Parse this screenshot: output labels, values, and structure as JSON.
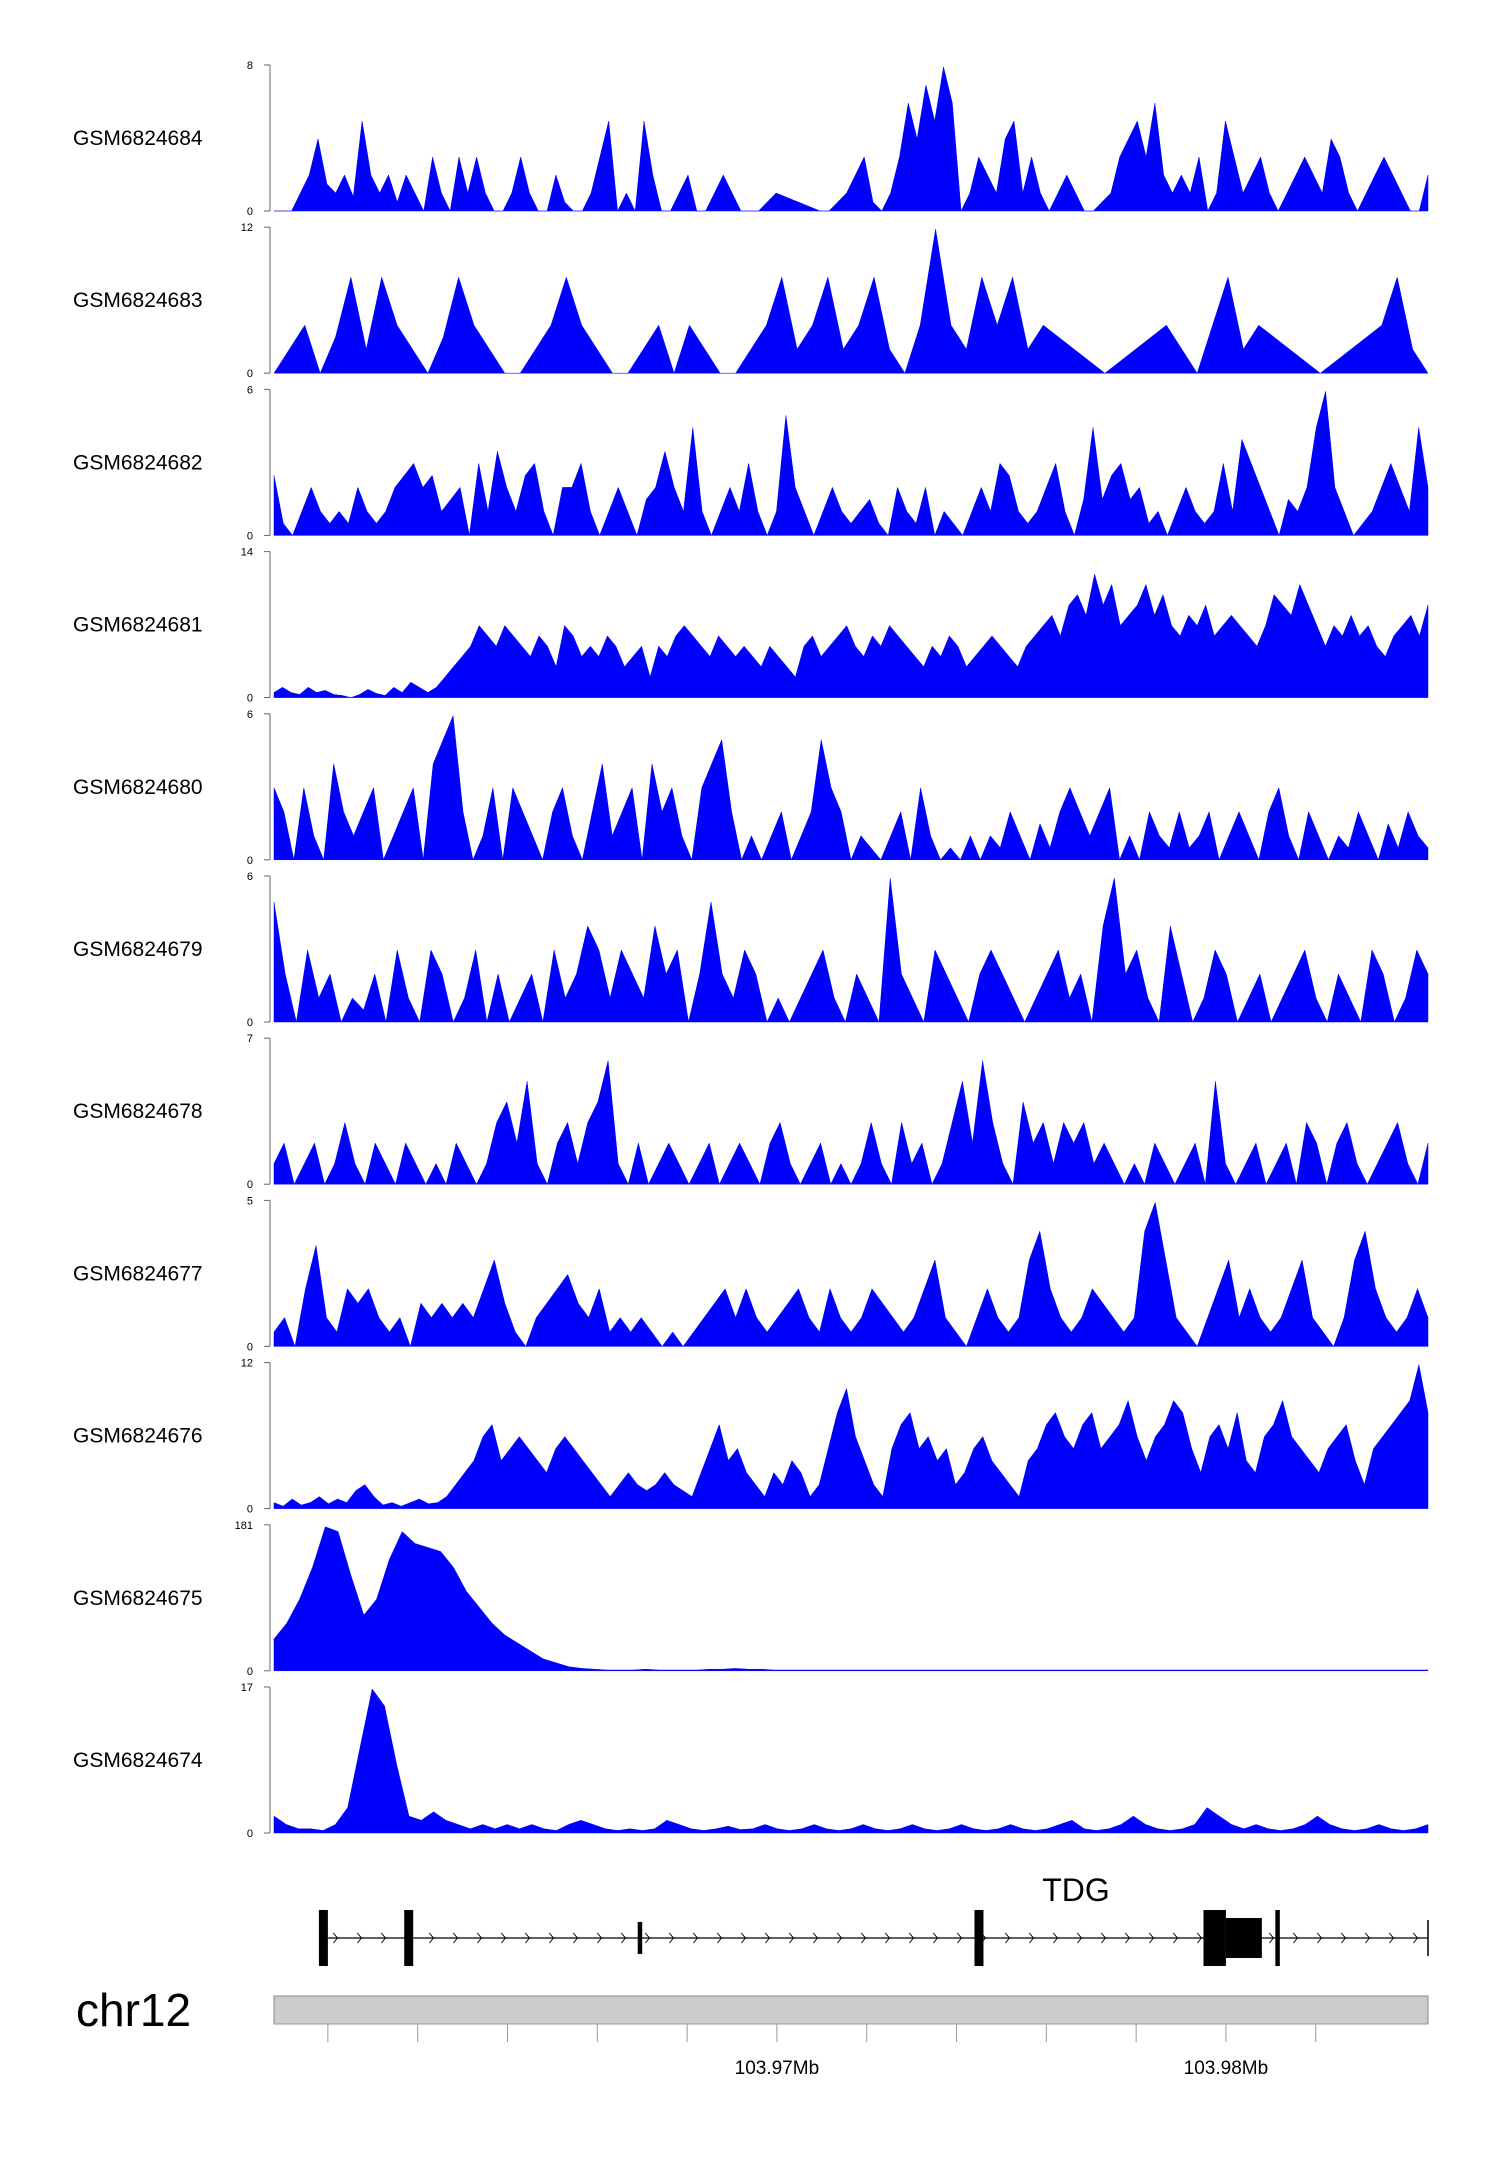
{
  "chart_data": {
    "type": "area",
    "chromosome": "chr12",
    "fill_color": "#0000ff",
    "x_range_mb": [
      103.9588,
      103.9845
    ],
    "x_tick_labels": [
      {
        "value": 103.97,
        "label": "103.97Mb"
      },
      {
        "value": 103.98,
        "label": "103.98Mb"
      }
    ],
    "x_minor_ticks": [
      103.96,
      103.962,
      103.964,
      103.966,
      103.968,
      103.97,
      103.972,
      103.974,
      103.976,
      103.978,
      103.98,
      103.982
    ],
    "gene": {
      "name": "TDG",
      "strand": "+",
      "start": 103.9599,
      "end": 103.9845,
      "exons": [
        {
          "start": 103.9598,
          "end": 103.96,
          "h": "full"
        },
        {
          "start": 103.9617,
          "end": 103.9619,
          "h": "full"
        },
        {
          "start": 103.9669,
          "end": 103.967,
          "h": "thin"
        },
        {
          "start": 103.9744,
          "end": 103.9746,
          "h": "full"
        },
        {
          "start": 103.9795,
          "end": 103.98,
          "h": "full"
        },
        {
          "start": 103.98,
          "end": 103.9808,
          "h": "mid"
        },
        {
          "start": 103.9811,
          "end": 103.9812,
          "h": "full"
        }
      ]
    },
    "series": [
      {
        "name": "GSM6824684",
        "ymax": 8,
        "ymin": 0,
        "values": [
          0,
          0,
          0,
          1,
          2,
          4,
          1.5,
          1,
          2,
          0.8,
          5,
          2,
          1,
          2,
          0.5,
          2,
          1,
          0,
          3,
          1,
          0,
          3,
          1,
          3,
          1,
          0,
          0,
          1,
          3,
          1,
          0,
          0,
          2,
          0.5,
          0,
          0,
          1,
          3,
          5,
          0,
          1,
          0,
          5,
          2,
          0,
          0,
          1,
          2,
          0,
          0,
          1,
          2,
          1,
          0,
          0,
          0,
          0.5,
          1,
          0.8,
          0.6,
          0.4,
          0.2,
          0,
          0,
          0.5,
          1,
          2,
          3,
          0.5,
          0,
          1,
          3,
          6,
          4,
          7,
          5,
          8,
          6,
          0,
          1,
          3,
          2,
          1,
          4,
          5,
          1,
          3,
          1,
          0,
          1,
          2,
          1,
          0,
          0,
          0.5,
          1,
          3,
          4,
          5,
          3,
          6,
          2,
          1,
          2,
          1,
          3,
          0,
          1,
          5,
          3,
          1,
          2,
          3,
          1,
          0,
          1,
          2,
          3,
          2,
          1,
          4,
          3,
          1,
          0,
          1,
          2,
          3,
          2,
          1,
          0,
          0,
          2
        ]
      },
      {
        "name": "GSM6824683",
        "ymax": 12,
        "ymin": 0,
        "values": [
          0,
          2,
          4,
          0,
          3,
          8,
          2,
          8,
          4,
          2,
          0,
          3,
          8,
          4,
          2,
          0,
          0,
          2,
          4,
          8,
          4,
          2,
          0,
          0,
          2,
          4,
          0,
          4,
          2,
          0,
          0,
          2,
          4,
          8,
          2,
          4,
          8,
          2,
          4,
          8,
          2,
          0,
          4,
          12,
          4,
          2,
          8,
          4,
          8,
          2,
          4,
          3,
          2,
          1,
          0,
          1,
          2,
          3,
          4,
          2,
          0,
          4,
          8,
          2,
          4,
          3,
          2,
          1,
          0,
          1,
          2,
          3,
          4,
          8,
          2,
          0
        ]
      },
      {
        "name": "GSM6824682",
        "ymax": 6,
        "ymin": 0,
        "values": [
          2.5,
          0.5,
          0,
          1,
          2,
          1,
          0.5,
          1,
          0.5,
          2,
          1,
          0.5,
          1,
          2,
          2.5,
          3,
          2,
          2.5,
          1,
          1.5,
          2,
          0,
          3,
          1,
          3.5,
          2,
          1,
          2.5,
          3,
          1,
          0,
          2,
          2,
          3,
          1,
          0,
          1,
          2,
          1,
          0,
          1.5,
          2,
          3.5,
          2,
          1,
          4.5,
          1,
          0,
          1,
          2,
          1,
          3,
          1,
          0,
          1,
          5,
          2,
          1,
          0,
          1,
          2,
          1,
          0.5,
          1,
          1.5,
          0.5,
          0,
          2,
          1,
          0.5,
          2,
          0,
          1,
          0.5,
          0,
          1,
          2,
          1,
          3,
          2.5,
          1,
          0.5,
          1,
          2,
          3,
          1,
          0,
          1.5,
          4.5,
          1.5,
          2.5,
          3,
          1.5,
          2,
          0.5,
          1,
          0,
          1,
          2,
          1,
          0.5,
          1,
          3,
          1,
          4,
          3,
          2,
          1,
          0,
          1.5,
          1,
          2,
          4.5,
          6,
          2,
          1,
          0,
          0.5,
          1,
          2,
          3,
          2,
          1,
          4.5,
          2
        ]
      },
      {
        "name": "GSM6824681",
        "ymax": 14,
        "ymin": 0,
        "values": [
          0.5,
          1,
          0.5,
          0.3,
          1,
          0.5,
          0.7,
          0.3,
          0.2,
          0,
          0.3,
          0.8,
          0.4,
          0.2,
          1,
          0.5,
          1.5,
          1,
          0.5,
          1,
          2,
          3,
          4,
          5,
          7,
          6,
          5,
          7,
          6,
          5,
          4,
          6,
          5,
          3,
          7,
          6,
          4,
          5,
          4,
          6,
          5,
          3,
          4,
          5,
          2,
          5,
          4,
          6,
          7,
          6,
          5,
          4,
          6,
          5,
          4,
          5,
          4,
          3,
          5,
          4,
          3,
          2,
          5,
          6,
          4,
          5,
          6,
          7,
          5,
          4,
          6,
          5,
          7,
          6,
          5,
          4,
          3,
          5,
          4,
          6,
          5,
          3,
          4,
          5,
          6,
          5,
          4,
          3,
          5,
          6,
          7,
          8,
          6,
          9,
          10,
          8,
          12,
          9,
          11,
          7,
          8,
          9,
          11,
          8,
          10,
          7,
          6,
          8,
          7,
          9,
          6,
          7,
          8,
          7,
          6,
          5,
          7,
          10,
          9,
          8,
          11,
          9,
          7,
          5,
          7,
          6,
          8,
          6,
          7,
          5,
          4,
          6,
          7,
          8,
          6,
          9
        ]
      },
      {
        "name": "GSM6824680",
        "ymax": 6,
        "ymin": 0,
        "values": [
          3,
          2,
          0,
          3,
          1,
          0,
          4,
          2,
          1,
          2,
          3,
          0,
          1,
          2,
          3,
          0,
          4,
          5,
          6,
          2,
          0,
          1,
          3,
          0,
          3,
          2,
          1,
          0,
          2,
          3,
          1,
          0,
          2,
          4,
          1,
          2,
          3,
          0,
          4,
          2,
          3,
          1,
          0,
          3,
          4,
          5,
          2,
          0,
          1,
          0,
          1,
          2,
          0,
          1,
          2,
          5,
          3,
          2,
          0,
          1,
          0.5,
          0,
          1,
          2,
          0,
          3,
          1,
          0,
          0.5,
          0,
          1,
          0,
          1,
          0.5,
          2,
          1,
          0,
          1.5,
          0.5,
          2,
          3,
          2,
          1,
          2,
          3,
          0,
          1,
          0,
          2,
          1,
          0.5,
          2,
          0.5,
          1,
          2,
          0,
          1,
          2,
          1,
          0,
          2,
          3,
          1,
          0,
          2,
          1,
          0,
          1,
          0.5,
          2,
          1,
          0,
          1.5,
          0.5,
          2,
          1,
          0.5
        ]
      },
      {
        "name": "GSM6824679",
        "ymax": 6,
        "ymin": 0,
        "values": [
          5,
          2,
          0,
          3,
          1,
          2,
          0,
          1,
          0.5,
          2,
          0,
          3,
          1,
          0,
          3,
          2,
          0,
          1,
          3,
          0,
          2,
          0,
          1,
          2,
          0,
          3,
          1,
          2,
          4,
          3,
          1,
          3,
          2,
          1,
          4,
          2,
          3,
          0,
          2,
          5,
          2,
          1,
          3,
          2,
          0,
          1,
          0,
          1,
          2,
          3,
          1,
          0,
          2,
          1,
          0,
          6,
          2,
          1,
          0,
          3,
          2,
          1,
          0,
          2,
          3,
          2,
          1,
          0,
          1,
          2,
          3,
          1,
          2,
          0,
          4,
          6,
          2,
          3,
          1,
          0,
          4,
          2,
          0,
          1,
          3,
          2,
          0,
          1,
          2,
          0,
          1,
          2,
          3,
          1,
          0,
          2,
          1,
          0,
          3,
          2,
          0,
          1,
          3,
          2
        ]
      },
      {
        "name": "GSM6824678",
        "ymax": 7,
        "ymin": 0,
        "values": [
          1,
          2,
          0,
          1,
          2,
          0,
          1,
          3,
          1,
          0,
          2,
          1,
          0,
          2,
          1,
          0,
          1,
          0,
          2,
          1,
          0,
          1,
          3,
          4,
          2,
          5,
          1,
          0,
          2,
          3,
          1,
          3,
          4,
          6,
          1,
          0,
          2,
          0,
          1,
          2,
          1,
          0,
          1,
          2,
          0,
          1,
          2,
          1,
          0,
          2,
          3,
          1,
          0,
          1,
          2,
          0,
          1,
          0,
          1,
          3,
          1,
          0,
          3,
          1,
          2,
          0,
          1,
          3,
          5,
          2,
          6,
          3,
          1,
          0,
          4,
          2,
          3,
          1,
          3,
          2,
          3,
          1,
          2,
          1,
          0,
          1,
          0,
          2,
          1,
          0,
          1,
          2,
          0,
          5,
          1,
          0,
          1,
          2,
          0,
          1,
          2,
          0,
          3,
          2,
          0,
          2,
          3,
          1,
          0,
          1,
          2,
          3,
          1,
          0,
          2
        ]
      },
      {
        "name": "GSM6824677",
        "ymax": 5,
        "ymin": 0,
        "values": [
          0.5,
          1,
          0,
          2,
          3.5,
          1,
          0.5,
          2,
          1.5,
          2,
          1,
          0.5,
          1,
          0,
          1.5,
          1,
          1.5,
          1,
          1.5,
          1,
          2,
          3,
          1.5,
          0.5,
          0,
          1,
          1.5,
          2,
          2.5,
          1.5,
          1,
          2,
          0.5,
          1,
          0.5,
          1,
          0.5,
          0,
          0.5,
          0,
          0.5,
          1,
          1.5,
          2,
          1,
          2,
          1,
          0.5,
          1,
          1.5,
          2,
          1,
          0.5,
          2,
          1,
          0.5,
          1,
          2,
          1.5,
          1,
          0.5,
          1,
          2,
          3,
          1,
          0.5,
          0,
          1,
          2,
          1,
          0.5,
          1,
          3,
          4,
          2,
          1,
          0.5,
          1,
          2,
          1.5,
          1,
          0.5,
          1,
          4,
          5,
          3,
          1,
          0.5,
          0,
          1,
          2,
          3,
          1,
          2,
          1,
          0.5,
          1,
          2,
          3,
          1,
          0.5,
          0,
          1,
          3,
          4,
          2,
          1,
          0.5,
          1,
          2,
          1
        ]
      },
      {
        "name": "GSM6824676",
        "ymax": 12,
        "ymin": 0,
        "values": [
          0.5,
          0.2,
          0.8,
          0.3,
          0.5,
          1,
          0.4,
          0.8,
          0.5,
          1.5,
          2,
          1,
          0.3,
          0.5,
          0.2,
          0.5,
          0.8,
          0.4,
          0.5,
          1,
          2,
          3,
          4,
          6,
          7,
          4,
          5,
          6,
          5,
          4,
          3,
          5,
          6,
          5,
          4,
          3,
          2,
          1,
          2,
          3,
          2,
          1.5,
          2,
          3,
          2,
          1.5,
          1,
          3,
          5,
          7,
          4,
          5,
          3,
          2,
          1,
          3,
          2,
          4,
          3,
          1,
          2,
          5,
          8,
          10,
          6,
          4,
          2,
          1,
          5,
          7,
          8,
          5,
          6,
          4,
          5,
          2,
          3,
          5,
          6,
          4,
          3,
          2,
          1,
          4,
          5,
          7,
          8,
          6,
          5,
          7,
          8,
          5,
          6,
          7,
          9,
          6,
          4,
          6,
          7,
          9,
          8,
          5,
          3,
          6,
          7,
          5,
          8,
          4,
          3,
          6,
          7,
          9,
          6,
          5,
          4,
          3,
          5,
          6,
          7,
          4,
          2,
          5,
          6,
          7,
          8,
          9,
          12,
          8
        ]
      },
      {
        "name": "GSM6824675",
        "ymax": 181,
        "ymin": 0,
        "values": [
          40,
          60,
          90,
          130,
          181,
          175,
          120,
          70,
          90,
          140,
          175,
          160,
          155,
          150,
          130,
          100,
          80,
          60,
          45,
          35,
          25,
          15,
          10,
          5,
          3,
          2,
          1,
          1,
          1,
          2,
          1,
          1,
          1,
          1,
          2,
          2,
          3,
          2,
          2,
          1,
          1,
          1,
          1,
          1,
          1,
          1,
          1,
          1,
          1,
          1,
          1,
          1,
          1,
          1,
          1,
          1,
          1,
          1,
          1,
          1,
          1,
          1,
          1,
          1,
          1,
          1,
          1,
          1,
          1,
          1,
          1,
          1,
          1,
          1,
          1,
          1,
          1,
          1,
          1,
          1,
          1,
          1,
          1,
          1,
          1,
          1,
          1,
          1,
          1,
          1,
          1
        ]
      },
      {
        "name": "GSM6824674",
        "ymax": 17,
        "ymin": 0,
        "values": [
          2,
          1,
          0.5,
          0.5,
          0.3,
          1,
          3,
          10,
          17,
          15,
          8,
          2,
          1.5,
          2.5,
          1.5,
          1,
          0.5,
          1,
          0.5,
          1,
          0.5,
          1,
          0.5,
          0.3,
          1,
          1.5,
          1,
          0.5,
          0.3,
          0.5,
          0.3,
          0.5,
          1.5,
          1,
          0.5,
          0.3,
          0.5,
          0.8,
          0.4,
          0.5,
          1,
          0.5,
          0.3,
          0.5,
          1,
          0.5,
          0.3,
          0.5,
          1,
          0.5,
          0.3,
          0.5,
          1,
          0.5,
          0.3,
          0.5,
          1,
          0.5,
          0.3,
          0.5,
          1,
          0.5,
          0.3,
          0.5,
          1,
          1.5,
          0.5,
          0.3,
          0.5,
          1,
          2,
          1,
          0.5,
          0.3,
          0.5,
          1,
          3,
          2,
          1,
          0.5,
          1,
          0.5,
          0.3,
          0.5,
          1,
          2,
          1,
          0.5,
          0.3,
          0.5,
          1,
          0.5,
          0.3,
          0.5,
          1
        ]
      }
    ]
  }
}
